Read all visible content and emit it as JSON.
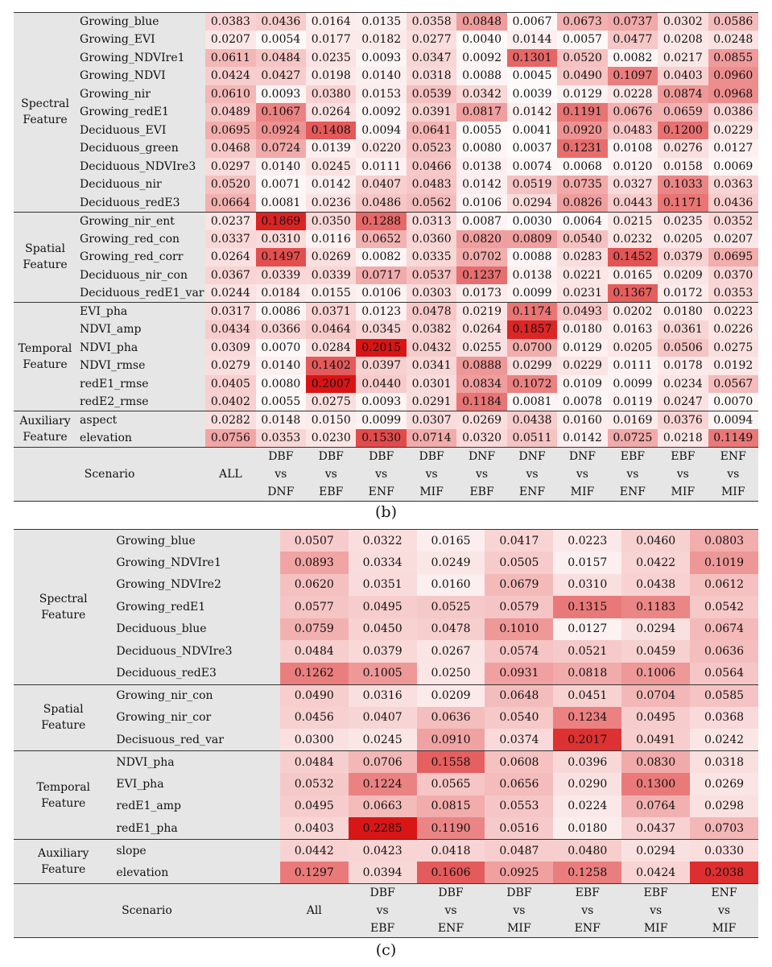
{
  "chart_data": [
    {
      "type": "heatmap",
      "panel": "b",
      "caption": [
        "(",
        "b",
        ")"
      ],
      "scenario_label": "Scenario",
      "scenarios": [
        [
          "ALL"
        ],
        [
          "DBF",
          "vs",
          "DNF"
        ],
        [
          "DBF",
          "vs",
          "EBF"
        ],
        [
          "DBF",
          "vs",
          "ENF"
        ],
        [
          "DBF",
          "vs",
          "MIF"
        ],
        [
          "DNF",
          "vs",
          "EBF"
        ],
        [
          "DNF",
          "vs",
          "ENF"
        ],
        [
          "DNF",
          "vs",
          "MIF"
        ],
        [
          "EBF",
          "vs",
          "ENF"
        ],
        [
          "EBF",
          "vs",
          "MIF"
        ],
        [
          "ENF",
          "vs",
          "MIF"
        ]
      ],
      "color_scale": {
        "low": "#ffffff",
        "high": "#d91414",
        "min": 0.0,
        "max": 0.2
      },
      "groups": [
        {
          "name": [
            "Spectral",
            "Feature"
          ],
          "rows": [
            {
              "feature": "Growing_blue",
              "values": [
                0.0383,
                0.0436,
                0.0164,
                0.0135,
                0.0358,
                0.0848,
                0.0067,
                0.0673,
                0.0737,
                0.0302,
                0.0586
              ]
            },
            {
              "feature": "Growing_EVI",
              "values": [
                0.0207,
                0.0054,
                0.0177,
                0.0182,
                0.0277,
                0.004,
                0.0144,
                0.0057,
                0.0477,
                0.0208,
                0.0248
              ]
            },
            {
              "feature": "Growing_NDVIre1",
              "values": [
                0.0611,
                0.0484,
                0.0235,
                0.0093,
                0.0347,
                0.0092,
                0.1301,
                0.052,
                0.0082,
                0.0217,
                0.0855
              ]
            },
            {
              "feature": "Growing_NDVI",
              "values": [
                0.0424,
                0.0427,
                0.0198,
                0.014,
                0.0318,
                0.0088,
                0.0045,
                0.049,
                0.1097,
                0.0403,
                0.096
              ]
            },
            {
              "feature": "Growing_nir",
              "values": [
                0.061,
                0.0093,
                0.038,
                0.0153,
                0.0539,
                0.0342,
                0.0039,
                0.0129,
                0.0228,
                0.0874,
                0.0968
              ]
            },
            {
              "feature": "Growing_redE1",
              "values": [
                0.0489,
                0.1067,
                0.0264,
                0.0092,
                0.0391,
                0.0817,
                0.0142,
                0.1191,
                0.0676,
                0.0659,
                0.0386
              ]
            },
            {
              "feature": "Deciduous_EVI",
              "values": [
                0.0695,
                0.0924,
                0.1408,
                0.0094,
                0.0641,
                0.0055,
                0.0041,
                0.092,
                0.0483,
                0.12,
                0.0229
              ]
            },
            {
              "feature": "Deciduous_green",
              "values": [
                0.0468,
                0.0724,
                0.0139,
                0.022,
                0.0523,
                0.008,
                0.0037,
                0.1231,
                0.0108,
                0.0276,
                0.0127
              ]
            },
            {
              "feature": "Deciduous_NDVIre3",
              "values": [
                0.0297,
                0.014,
                0.0245,
                0.0111,
                0.0466,
                0.0138,
                0.0074,
                0.0068,
                0.012,
                0.0158,
                0.0069
              ]
            },
            {
              "feature": "Deciduous_nir",
              "values": [
                0.052,
                0.0071,
                0.0142,
                0.0407,
                0.0483,
                0.0142,
                0.0519,
                0.0735,
                0.0327,
                0.1033,
                0.0363
              ]
            },
            {
              "feature": "Deciduous_redE3",
              "values": [
                0.0664,
                0.0081,
                0.0236,
                0.0486,
                0.0562,
                0.0106,
                0.0294,
                0.0826,
                0.0443,
                0.1171,
                0.0436
              ]
            }
          ]
        },
        {
          "name": [
            "Spatial",
            "Feature"
          ],
          "rows": [
            {
              "feature": "Growing_nir_ent",
              "values": [
                0.0237,
                0.1869,
                0.035,
                0.1288,
                0.0313,
                0.0087,
                0.003,
                0.0064,
                0.0215,
                0.0235,
                0.0352
              ]
            },
            {
              "feature": "Growing_red_con",
              "values": [
                0.0337,
                0.031,
                0.0116,
                0.0652,
                0.036,
                0.082,
                0.0809,
                0.054,
                0.0232,
                0.0205,
                0.0207
              ]
            },
            {
              "feature": "Growing_red_corr",
              "values": [
                0.0264,
                0.1497,
                0.0269,
                0.0082,
                0.0335,
                0.0702,
                0.0088,
                0.0283,
                0.1452,
                0.0379,
                0.0695
              ]
            },
            {
              "feature": "Deciduous_nir_con",
              "values": [
                0.0367,
                0.0339,
                0.0339,
                0.0717,
                0.0537,
                0.1237,
                0.0138,
                0.0221,
                0.0165,
                0.0209,
                0.037
              ]
            },
            {
              "feature": "Deciduous_redE1_var",
              "values": [
                0.0244,
                0.0184,
                0.0155,
                0.0106,
                0.0303,
                0.0173,
                0.0099,
                0.0231,
                0.1367,
                0.0172,
                0.0353
              ]
            }
          ]
        },
        {
          "name": [
            "Temporal",
            "Feature"
          ],
          "rows": [
            {
              "feature": "EVI_pha",
              "values": [
                0.0317,
                0.0086,
                0.0371,
                0.0123,
                0.0478,
                0.0219,
                0.1174,
                0.0493,
                0.0202,
                0.018,
                0.0223
              ]
            },
            {
              "feature": "NDVI_amp",
              "values": [
                0.0434,
                0.0366,
                0.0464,
                0.0345,
                0.0382,
                0.0264,
                0.1857,
                0.018,
                0.0163,
                0.0361,
                0.0226
              ]
            },
            {
              "feature": "NDVI_pha",
              "values": [
                0.0309,
                0.007,
                0.0284,
                0.2015,
                0.0432,
                0.0255,
                0.07,
                0.0129,
                0.0205,
                0.0506,
                0.0275
              ]
            },
            {
              "feature": "NDVI_rmse",
              "values": [
                0.0279,
                0.014,
                0.1402,
                0.0397,
                0.0341,
                0.0888,
                0.0299,
                0.0229,
                0.0111,
                0.0178,
                0.0192
              ]
            },
            {
              "feature": "redE1_rmse",
              "values": [
                0.0405,
                0.008,
                0.2007,
                0.044,
                0.0301,
                0.0834,
                0.1072,
                0.0109,
                0.0099,
                0.0234,
                0.0567
              ]
            },
            {
              "feature": "redE2_rmse",
              "values": [
                0.0402,
                0.0055,
                0.0275,
                0.0093,
                0.0291,
                0.1184,
                0.0081,
                0.0078,
                0.0119,
                0.0247,
                0.007
              ]
            }
          ]
        },
        {
          "name": [
            "Auxiliary",
            "Feature"
          ],
          "rows": [
            {
              "feature": "aspect",
              "values": [
                0.0282,
                0.0148,
                0.015,
                0.0099,
                0.0307,
                0.0269,
                0.0438,
                0.016,
                0.0169,
                0.0376,
                0.0094
              ]
            },
            {
              "feature": "elevation",
              "values": [
                0.0756,
                0.0353,
                0.023,
                0.153,
                0.0714,
                0.032,
                0.0511,
                0.0142,
                0.0725,
                0.0218,
                0.1149
              ]
            }
          ]
        }
      ]
    },
    {
      "type": "heatmap",
      "panel": "c",
      "caption": [
        "(",
        "c",
        ")"
      ],
      "scenario_label": "Scenario",
      "scenarios": [
        [
          "All"
        ],
        [
          "DBF",
          "vs",
          "EBF"
        ],
        [
          "DBF",
          "vs",
          "ENF"
        ],
        [
          "DBF",
          "vs",
          "MIF"
        ],
        [
          "EBF",
          "vs",
          "ENF"
        ],
        [
          "EBF",
          "vs",
          "MIF"
        ],
        [
          "ENF",
          "vs",
          "MIF"
        ]
      ],
      "color_scale": {
        "low": "#ffffff",
        "high": "#d91414",
        "min": 0.0,
        "max": 0.23
      },
      "groups": [
        {
          "name": [
            "Spectral",
            "Feature"
          ],
          "rows": [
            {
              "feature": "Growing_blue",
              "values": [
                0.0507,
                0.0322,
                0.0165,
                0.0417,
                0.0223,
                0.046,
                0.0803
              ]
            },
            {
              "feature": "Growing_NDVIre1",
              "values": [
                0.0893,
                0.0334,
                0.0249,
                0.0505,
                0.0157,
                0.0422,
                0.1019
              ]
            },
            {
              "feature": "Growing_NDVIre2",
              "values": [
                0.062,
                0.0351,
                0.016,
                0.0679,
                0.031,
                0.0438,
                0.0612
              ]
            },
            {
              "feature": "Growing_redE1",
              "values": [
                0.0577,
                0.0495,
                0.0525,
                0.0579,
                0.1315,
                0.1183,
                0.0542
              ]
            },
            {
              "feature": "Deciduous_blue",
              "values": [
                0.0759,
                0.045,
                0.0478,
                0.101,
                0.0127,
                0.0294,
                0.0674
              ]
            },
            {
              "feature": "Deciduous_NDVIre3",
              "values": [
                0.0484,
                0.0379,
                0.0267,
                0.0574,
                0.0521,
                0.0459,
                0.0636
              ]
            },
            {
              "feature": "Deciduous_redE3",
              "values": [
                0.1262,
                0.1005,
                0.025,
                0.0931,
                0.0818,
                0.1006,
                0.0564
              ]
            }
          ]
        },
        {
          "name": [
            "Spatial",
            "Feature"
          ],
          "rows": [
            {
              "feature": "Growing_nir_con",
              "values": [
                0.049,
                0.0316,
                0.0209,
                0.0648,
                0.0451,
                0.0704,
                0.0585
              ]
            },
            {
              "feature": "Growing_nir_cor",
              "values": [
                0.0456,
                0.0407,
                0.0636,
                0.054,
                0.1234,
                0.0495,
                0.0368
              ]
            },
            {
              "feature": "Decisuous_red_var",
              "values": [
                0.03,
                0.0245,
                0.091,
                0.0374,
                0.2017,
                0.0491,
                0.0242
              ]
            }
          ]
        },
        {
          "name": [
            "Temporal",
            "Feature"
          ],
          "rows": [
            {
              "feature": "NDVI_pha",
              "values": [
                0.0484,
                0.0706,
                0.1558,
                0.0608,
                0.0396,
                0.083,
                0.0318
              ]
            },
            {
              "feature": "EVI_pha",
              "values": [
                0.0532,
                0.1224,
                0.0565,
                0.0656,
                0.029,
                0.13,
                0.0269
              ]
            },
            {
              "feature": "redE1_amp",
              "values": [
                0.0495,
                0.0663,
                0.0815,
                0.0553,
                0.0224,
                0.0764,
                0.0298
              ]
            },
            {
              "feature": "redE1_pha",
              "values": [
                0.0403,
                0.2285,
                0.119,
                0.0516,
                0.018,
                0.0437,
                0.0703
              ]
            }
          ]
        },
        {
          "name": [
            "Auxiliary",
            "Feature"
          ],
          "rows": [
            {
              "feature": "slope",
              "values": [
                0.0442,
                0.0423,
                0.0418,
                0.0487,
                0.048,
                0.0294,
                0.033
              ]
            },
            {
              "feature": "elevation",
              "values": [
                0.1297,
                0.0394,
                0.1606,
                0.0925,
                0.1258,
                0.0424,
                0.2038
              ]
            }
          ]
        }
      ]
    }
  ]
}
